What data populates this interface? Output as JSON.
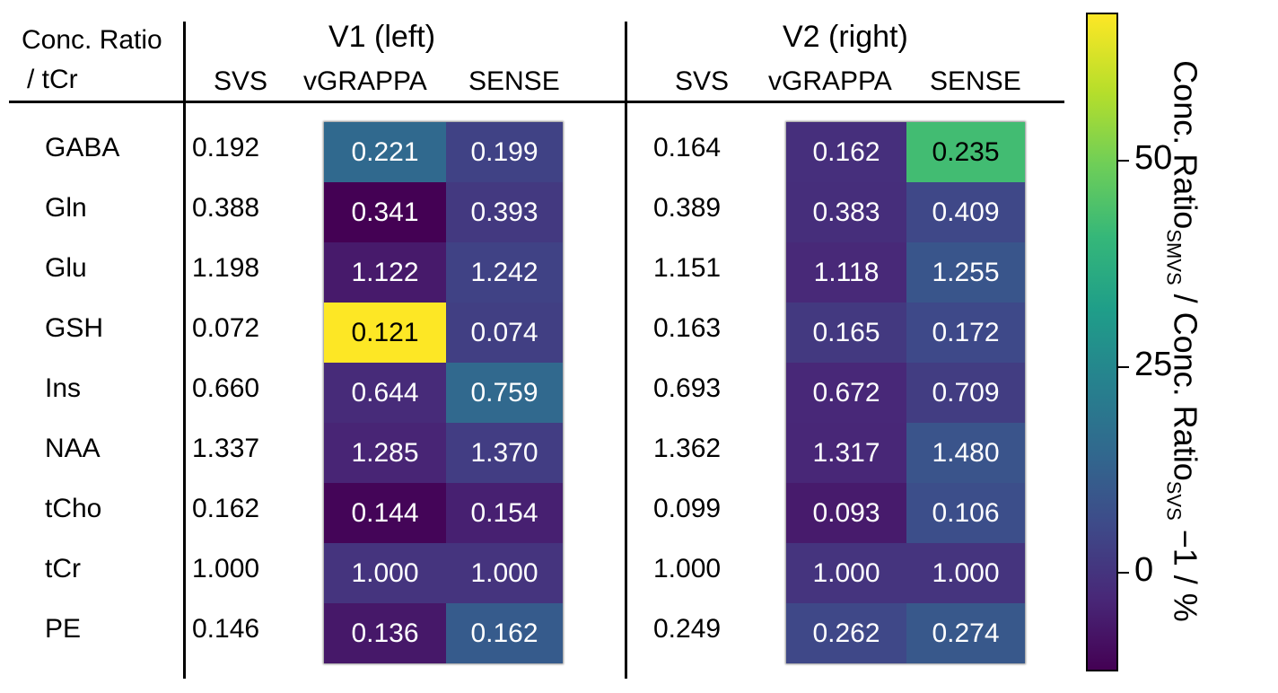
{
  "chart_data": {
    "type": "heatmap",
    "header_line1": "Conc. Ratio",
    "header_line2": "/ tCr",
    "groups": [
      {
        "title": "V1 (left)",
        "columns": [
          "SVS",
          "vGRAPPA",
          "SENSE"
        ]
      },
      {
        "title": "V2 (right)",
        "columns": [
          "SVS",
          "vGRAPPA",
          "SENSE"
        ]
      }
    ],
    "metabolites": [
      "GABA",
      "Gln",
      "Glu",
      "GSH",
      "Ins",
      "NAA",
      "tCho",
      "tCr",
      "PE"
    ],
    "rows": [
      {
        "v1": [
          "0.192",
          "0.221",
          "0.199"
        ],
        "v2": [
          "0.164",
          "0.162",
          "0.235"
        ]
      },
      {
        "v1": [
          "0.388",
          "0.341",
          "0.393"
        ],
        "v2": [
          "0.389",
          "0.383",
          "0.409"
        ]
      },
      {
        "v1": [
          "1.198",
          "1.122",
          "1.242"
        ],
        "v2": [
          "1.151",
          "1.118",
          "1.255"
        ]
      },
      {
        "v1": [
          "0.072",
          "0.121",
          "0.074"
        ],
        "v2": [
          "0.163",
          "0.165",
          "0.172"
        ]
      },
      {
        "v1": [
          "0.660",
          "0.644",
          "0.759"
        ],
        "v2": [
          "0.693",
          "0.672",
          "0.709"
        ]
      },
      {
        "v1": [
          "1.337",
          "1.285",
          "1.370"
        ],
        "v2": [
          "1.362",
          "1.317",
          "1.480"
        ]
      },
      {
        "v1": [
          "0.162",
          "0.144",
          "0.154"
        ],
        "v2": [
          "0.099",
          "0.093",
          "0.106"
        ]
      },
      {
        "v1": [
          "1.000",
          "1.000",
          "1.000"
        ],
        "v2": [
          "1.000",
          "1.000",
          "1.000"
        ]
      },
      {
        "v1": [
          "0.146",
          "0.136",
          "0.162"
        ],
        "v2": [
          "0.249",
          "0.262",
          "0.274"
        ]
      }
    ],
    "colorbar": {
      "range": [
        -12,
        68
      ],
      "ticks": [
        {
          "value": 0,
          "label": "0"
        },
        {
          "value": 25,
          "label": "25"
        },
        {
          "value": 50,
          "label": "50"
        }
      ],
      "label_main": "Conc. Ratio",
      "label_sub1": "SMVS",
      "label_mid": " / Conc. Ratio",
      "label_sub2": "SVS",
      "label_end": " −1 / %",
      "colors": [
        "#440154",
        "#482878",
        "#3e4a89",
        "#31688e",
        "#26828e",
        "#1f9e89",
        "#35b779",
        "#6ece58",
        "#b5de2b",
        "#fde725"
      ]
    }
  }
}
